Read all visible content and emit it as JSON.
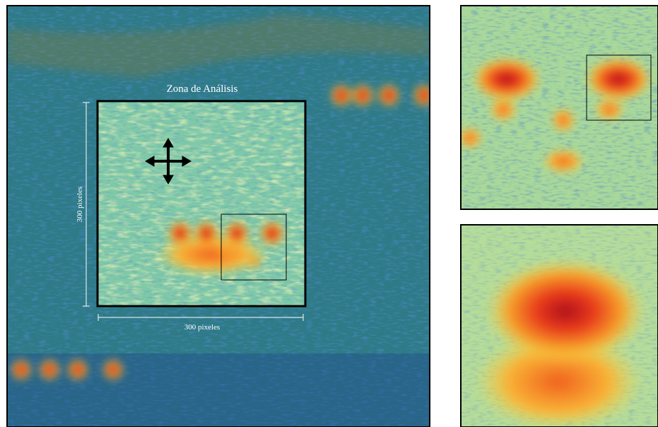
{
  "annotations": {
    "title": "Zona de Análisis",
    "height_label": "300 pixeles",
    "width_label": "300 pixeles"
  }
}
